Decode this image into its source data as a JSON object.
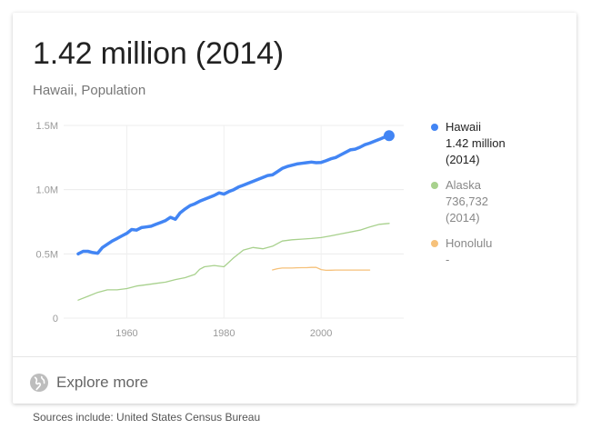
{
  "card": {
    "headline": "1.42 million (2014)",
    "subtitle": "Hawaii, Population",
    "explore_label": "Explore more"
  },
  "footer": {
    "sources": "Sources include: United States Census Bureau"
  },
  "legend": {
    "items": [
      {
        "name": "Hawaii",
        "value": "1.42 million",
        "year": "(2014)",
        "color": "#4285f4",
        "text_color": "#222222"
      },
      {
        "name": "Alaska",
        "value": "736,732",
        "year": "(2014)",
        "color": "#a8d18d",
        "text_color": "#888888"
      },
      {
        "name": "Honolulu",
        "value": "-",
        "year": "",
        "color": "#f6c17a",
        "text_color": "#888888"
      }
    ]
  },
  "chart_data": {
    "type": "line",
    "xlim": [
      1947,
      2017
    ],
    "ylim": [
      0,
      1500000
    ],
    "x_ticks": [
      1960,
      1980,
      2000
    ],
    "x_tick_labels": [
      "1960",
      "1980",
      "2000"
    ],
    "y_ticks": [
      0,
      500000,
      1000000,
      1500000
    ],
    "y_tick_labels": [
      "0",
      "0.5M",
      "1.0M",
      "1.5M"
    ],
    "grid": true,
    "legend_position": "right",
    "series": [
      {
        "name": "Hawaii",
        "color": "#4285f4",
        "end_marker": true,
        "x": [
          1950,
          1951,
          1952,
          1953,
          1954,
          1955,
          1956,
          1957,
          1958,
          1959,
          1960,
          1961,
          1962,
          1963,
          1964,
          1965,
          1966,
          1967,
          1968,
          1969,
          1970,
          1971,
          1972,
          1973,
          1974,
          1975,
          1976,
          1977,
          1978,
          1979,
          1980,
          1981,
          1982,
          1983,
          1984,
          1985,
          1986,
          1987,
          1988,
          1989,
          1990,
          1991,
          1992,
          1993,
          1994,
          1995,
          1996,
          1997,
          1998,
          1999,
          2000,
          2001,
          2002,
          2003,
          2004,
          2005,
          2006,
          2007,
          2008,
          2009,
          2010,
          2011,
          2012,
          2013,
          2014
        ],
        "values": [
          500000,
          520000,
          520000,
          510000,
          505000,
          550000,
          575000,
          600000,
          620000,
          640000,
          660000,
          690000,
          685000,
          705000,
          710000,
          715000,
          730000,
          745000,
          760000,
          785000,
          770000,
          820000,
          850000,
          875000,
          890000,
          910000,
          925000,
          940000,
          955000,
          975000,
          965000,
          985000,
          1000000,
          1020000,
          1035000,
          1050000,
          1065000,
          1080000,
          1095000,
          1110000,
          1115000,
          1140000,
          1165000,
          1180000,
          1190000,
          1200000,
          1205000,
          1210000,
          1215000,
          1210000,
          1212000,
          1225000,
          1240000,
          1250000,
          1270000,
          1290000,
          1310000,
          1315000,
          1330000,
          1350000,
          1362000,
          1377000,
          1392000,
          1408000,
          1420000
        ]
      },
      {
        "name": "Alaska",
        "color": "#a8d18d",
        "end_marker": false,
        "x": [
          1950,
          1952,
          1954,
          1956,
          1958,
          1960,
          1962,
          1964,
          1966,
          1968,
          1970,
          1972,
          1974,
          1975,
          1976,
          1978,
          1980,
          1982,
          1984,
          1986,
          1988,
          1990,
          1992,
          1994,
          1996,
          1998,
          2000,
          2002,
          2004,
          2006,
          2008,
          2010,
          2012,
          2014
        ],
        "values": [
          140000,
          170000,
          200000,
          220000,
          220000,
          230000,
          250000,
          260000,
          270000,
          280000,
          300000,
          315000,
          340000,
          380000,
          400000,
          410000,
          400000,
          470000,
          530000,
          550000,
          540000,
          560000,
          600000,
          610000,
          615000,
          620000,
          627000,
          640000,
          655000,
          670000,
          685000,
          710000,
          730000,
          737000
        ]
      },
      {
        "name": "Honolulu",
        "color": "#f6c17a",
        "end_marker": false,
        "x": [
          1990,
          1991,
          1992,
          1993,
          1994,
          1995,
          1996,
          1997,
          1998,
          1999,
          2000,
          2001,
          2002,
          2003,
          2004,
          2005,
          2006,
          2007,
          2008,
          2009,
          2010
        ],
        "values": [
          375000,
          385000,
          390000,
          390000,
          390000,
          392000,
          393000,
          393000,
          395000,
          395000,
          378000,
          372000,
          373000,
          374000,
          374000,
          374000,
          374000,
          374000,
          374000,
          374000,
          374000
        ]
      }
    ]
  }
}
